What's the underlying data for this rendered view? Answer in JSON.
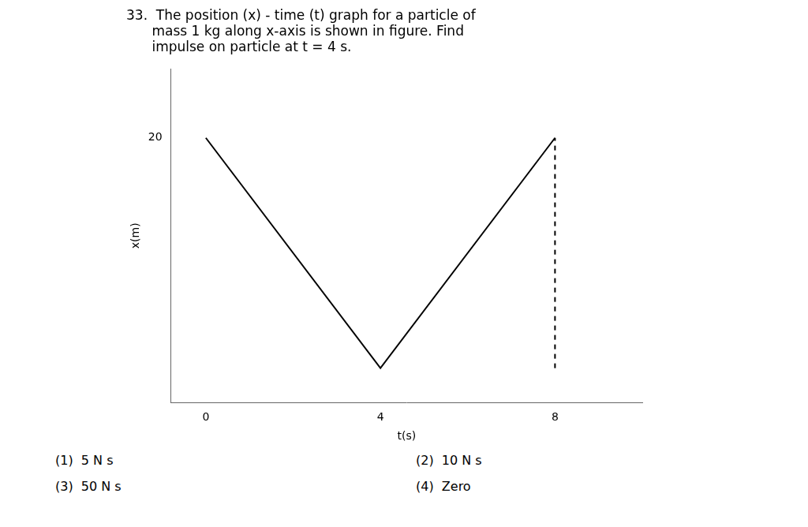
{
  "chart_data": {
    "type": "line",
    "title": [
      "33.  The position (x) - time (t) graph for a particle of",
      "      mass 1 kg along x-axis is shown in figure. Find",
      "      impulse on particle at t = 4 s."
    ],
    "x_label": "t(s)",
    "y_label": "x(m)",
    "series": [
      {
        "x": [
          0,
          4,
          8
        ],
        "values": [
          20,
          0,
          20
        ],
        "color": "#000000",
        "line_style": "solid"
      },
      {
        "x": [
          8,
          8
        ],
        "values": [
          0,
          20
        ],
        "color": "#000000",
        "line_style": "dashed"
      }
    ],
    "xlim": [
      -0.8,
      10
    ],
    "ylim": [
      -3,
      26
    ],
    "xticks": [
      0,
      4,
      8
    ],
    "yticks": [
      20
    ],
    "grid": false,
    "annotations": [
      [
        "(1)  5 N s",
        "(2)  10 N s"
      ],
      [
        "(3)  50 N s",
        "(4)  Zero"
      ]
    ]
  }
}
